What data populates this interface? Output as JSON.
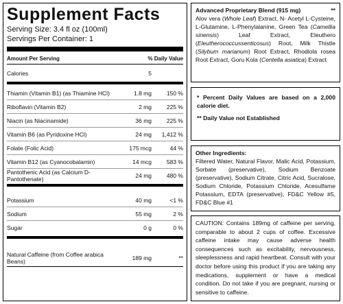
{
  "facts": {
    "title": "Supplement Facts",
    "serving_size": "Serving Size: 3.4 fl oz (100ml)",
    "servings_per_container": "Servings Per Container: 1",
    "header": {
      "amount": "Amount Per Serving",
      "dv": "% Daily Value"
    },
    "sections": [
      [
        {
          "name": "Calories",
          "amount": "5"
        }
      ],
      [
        {
          "name": "Thiamin (Vitamin B1) (as Thiamine HCl)",
          "amount": "1.8 mg",
          "dv": "150 %"
        },
        {
          "name": "Riboflavin (Vitamin B2)",
          "amount": "2 mg",
          "dv": "225 %"
        },
        {
          "name": "Niacin (as Niacinamide)",
          "amount": "36 mg",
          "dv": "225 %"
        },
        {
          "name": "Vitamin B6 (as Pyridoxine HCl)",
          "amount": "24 mg",
          "dv": "1,412 %"
        },
        {
          "name": "Folate (Folic Acid)",
          "amount": "175 mcg",
          "dv": "44 %"
        },
        {
          "name": "Vitamin B12 (as Cyanocobalamin)",
          "amount": "14 mcg",
          "dv": "583 %"
        },
        {
          "name": "Pantothenic Acid (as Calcium D-Pantothenate)",
          "amount": "24 mg",
          "dv": "480 %"
        }
      ],
      [
        {
          "name": "Potassium",
          "amount": "40 mg",
          "dv": "<1 %"
        },
        {
          "name": "Sodium",
          "amount": "55 mg",
          "dv": "2 %"
        },
        {
          "name": "Sugar",
          "amount": "0 g",
          "dv": "0 %"
        }
      ],
      [
        {
          "name": "Natural Caffeine (from Coffee arabica Beans)",
          "amount": "189 mg",
          "dv": "**"
        }
      ]
    ]
  },
  "blend": {
    "title": "Advanced Proprietary Blend (915 mg)",
    "mark": "**",
    "segments": [
      {
        "text": "Alov vera (",
        "italic": false
      },
      {
        "text": "Whole Leaf",
        "italic": true
      },
      {
        "text": ") Extract, N- Acetyl L-Cysteine, L-Glutamine, L-Phenylalanine, Green Tea (",
        "italic": false
      },
      {
        "text": "Camellia sinensis",
        "italic": true
      },
      {
        "text": ") Leaf Extract, Eleuthero (",
        "italic": false
      },
      {
        "text": "Eleutherococcussenticosus",
        "italic": true
      },
      {
        "text": ") Root, Milk Thistle (",
        "italic": false
      },
      {
        "text": "Silybum marianum",
        "italic": true
      },
      {
        "text": ") Root Extract, Rhodiola rosea Root Extract, Goru Kola (",
        "italic": false
      },
      {
        "text": "Centella asiatica",
        "italic": true
      },
      {
        "text": ") Extract",
        "italic": false
      }
    ]
  },
  "notes": [
    "* Percent Daily Values are based on a 2,000 calorie diet.",
    "** Daily Value not Established"
  ],
  "other_ingredients": {
    "title": "Other Ingredients:",
    "text": "Filtered Water, Natural Flavor, Malic Acid, Potassium, Sorbate (preservative), Sodium Benzoate (preservative), Sodium Citrate, Citric Acid, Sucralose, Sodium Chloride, Potassium Chloride, Acesulfame Potassium, EDTA (preservative), FD&C Yellow #5, FD&C Blue #1"
  },
  "caution": "CAUTION: Contains 189mg of caffeine per serving, comparable to about 2 cups of coffee. Excessive caffeine intake may cause adverse health consequences such as excitability, nervousness, sleeplessness and rapid heartbeat. Consult with your doctor before using this product if you are taking any medications, supplement or have a medical condition. Do not take if you are pregnant, nursing or sensitive to caffeine."
}
